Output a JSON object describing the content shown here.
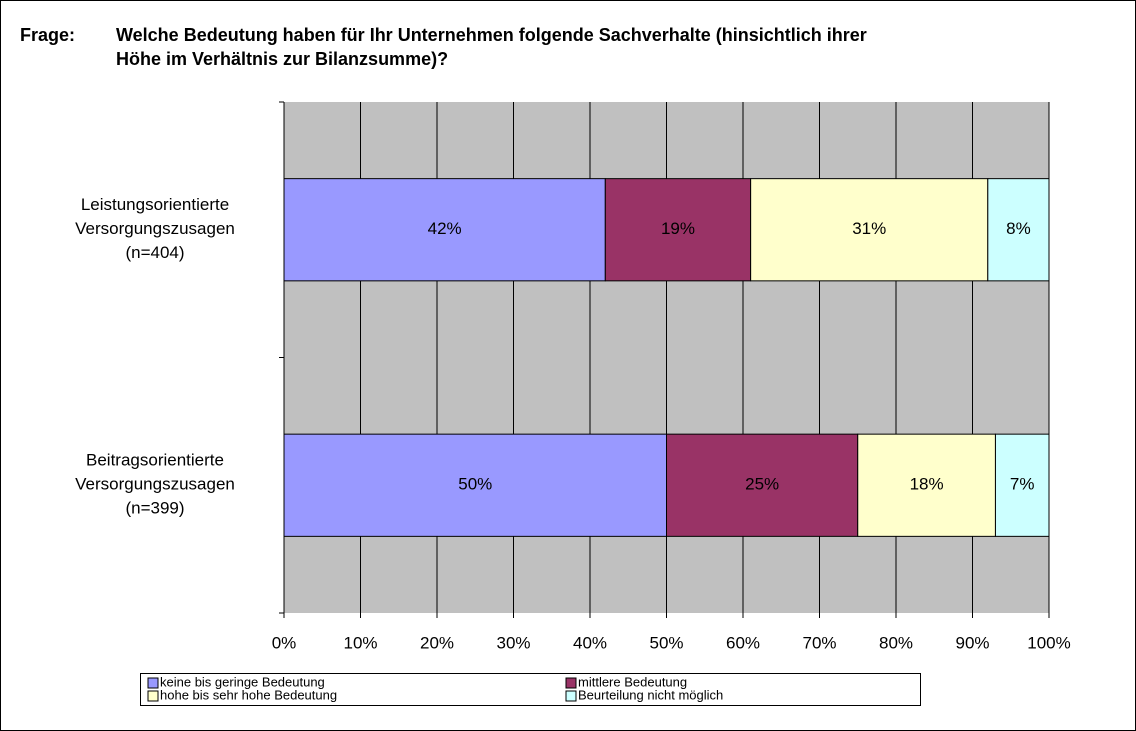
{
  "chart_data": {
    "type": "stacked_barh",
    "title_label": "Frage:",
    "title": [
      "Welche Bedeutung haben für Ihr Unternehmen folgende Sachverhalte (hinsichtlich ihrer",
      "Höhe im Verhältnis zur Bilanzsumme)?"
    ],
    "categories": [
      [
        "Leistungsorientierte",
        "Versorgungszusagen",
        "(n=404)"
      ],
      [
        "Beitragsorientierte",
        "Versorgungszusagen",
        "(n=399)"
      ]
    ],
    "series": [
      {
        "name": "keine bis geringe Bedeutung",
        "color": "#9999ff",
        "values": [
          42,
          50
        ],
        "value_labels": [
          "42%",
          "50%"
        ]
      },
      {
        "name": "mittlere Bedeutung",
        "color": "#993366",
        "values": [
          19,
          25
        ],
        "value_labels": [
          "19%",
          "25%"
        ]
      },
      {
        "name": "hohe bis sehr hohe Bedeutung",
        "color": "#ffffcc",
        "values": [
          31,
          18
        ],
        "value_labels": [
          "31%",
          "18%"
        ]
      },
      {
        "name": "Beurteilung nicht möglich",
        "color": "#ccffff",
        "values": [
          8,
          7
        ],
        "value_labels": [
          "8%",
          "7%"
        ]
      }
    ],
    "xlim": [
      0,
      100
    ],
    "xticks": [
      {
        "value": 0,
        "label": "0%"
      },
      {
        "value": 10,
        "label": "10%"
      },
      {
        "value": 20,
        "label": "20%"
      },
      {
        "value": 30,
        "label": "30%"
      },
      {
        "value": 40,
        "label": "40%"
      },
      {
        "value": 50,
        "label": "50%"
      },
      {
        "value": 60,
        "label": "60%"
      },
      {
        "value": 70,
        "label": "70%"
      },
      {
        "value": 80,
        "label": "80%"
      },
      {
        "value": 90,
        "label": "90%"
      },
      {
        "value": 100,
        "label": "100%"
      }
    ],
    "grid": true,
    "plot_background": "#c0c0c0",
    "legend": "bottom"
  }
}
